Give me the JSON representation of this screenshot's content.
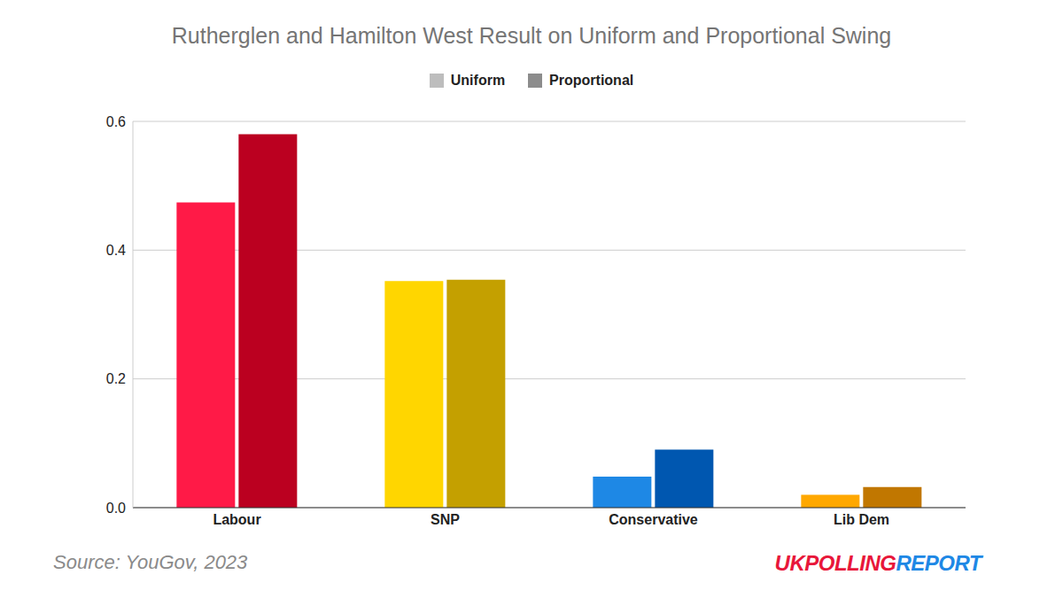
{
  "chart_data": {
    "type": "bar",
    "title": "Rutherglen and Hamilton West Result on Uniform and Proportional Swing",
    "categories": [
      "Labour",
      "SNP",
      "Conservative",
      "Lib Dem"
    ],
    "series": [
      {
        "name": "Uniform",
        "color": "#bdbdbd",
        "colors": [
          "#ff1a47",
          "#ffd600",
          "#1e88e5",
          "#ffa800"
        ],
        "values": [
          0.474,
          0.352,
          0.048,
          0.02
        ]
      },
      {
        "name": "Proportional",
        "color": "#8c8c8c",
        "colors": [
          "#bb0020",
          "#c4a000",
          "#0057b0",
          "#c17700"
        ],
        "values": [
          0.58,
          0.354,
          0.09,
          0.032
        ]
      }
    ],
    "ylim": [
      0,
      0.6
    ],
    "yticks": [
      {
        "value": 0,
        "label": "0.0"
      },
      0.2,
      0.4,
      0.6
    ],
    "grid": true,
    "legend": "top",
    "source": "Source: YouGov, 2023",
    "logo": "UKPOLLINGREPORT"
  }
}
